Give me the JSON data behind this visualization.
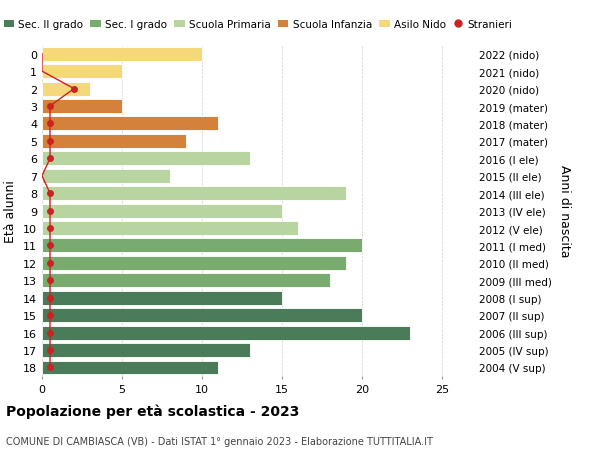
{
  "ages": [
    0,
    1,
    2,
    3,
    4,
    5,
    6,
    7,
    8,
    9,
    10,
    11,
    12,
    13,
    14,
    15,
    16,
    17,
    18
  ],
  "values": [
    10,
    5,
    3,
    5,
    11,
    9,
    13,
    8,
    19,
    15,
    16,
    20,
    19,
    18,
    15,
    20,
    23,
    13,
    11
  ],
  "stranieri_x": [
    0,
    0,
    2,
    0.5,
    0.5,
    0.5,
    0.5,
    0,
    0.5,
    0.5,
    0.5,
    0.5,
    0.5,
    0.5,
    0.5,
    0.5,
    0.5,
    0.5,
    0.5
  ],
  "stranieri_show": [
    0,
    0,
    1,
    1,
    1,
    1,
    1,
    0,
    1,
    1,
    1,
    1,
    1,
    1,
    1,
    1,
    1,
    1,
    1
  ],
  "bar_colors": [
    "#f5d87a",
    "#f5d87a",
    "#f5d87a",
    "#d4813a",
    "#d4813a",
    "#d4813a",
    "#b8d4a0",
    "#b8d4a0",
    "#b8d4a0",
    "#b8d4a0",
    "#b8d4a0",
    "#7aab6e",
    "#7aab6e",
    "#7aab6e",
    "#4a7c59",
    "#4a7c59",
    "#4a7c59",
    "#4a7c59",
    "#4a7c59"
  ],
  "right_labels": [
    "2022 (nido)",
    "2021 (nido)",
    "2020 (nido)",
    "2019 (mater)",
    "2018 (mater)",
    "2017 (mater)",
    "2016 (I ele)",
    "2015 (II ele)",
    "2014 (III ele)",
    "2013 (IV ele)",
    "2012 (V ele)",
    "2011 (I med)",
    "2010 (II med)",
    "2009 (III med)",
    "2008 (I sup)",
    "2007 (II sup)",
    "2006 (III sup)",
    "2005 (IV sup)",
    "2004 (V sup)"
  ],
  "legend_labels": [
    "Sec. II grado",
    "Sec. I grado",
    "Scuola Primaria",
    "Scuola Infanzia",
    "Asilo Nido",
    "Stranieri"
  ],
  "legend_colors": [
    "#4a7c59",
    "#7aab6e",
    "#b8d4a0",
    "#d4813a",
    "#f5d87a",
    "#cc2222"
  ],
  "ylabel_left": "Età alunni",
  "ylabel_right": "Anni di nascita",
  "title": "Popolazione per età scolastica - 2023",
  "subtitle": "COMUNE DI CAMBIASCA (VB) - Dati ISTAT 1° gennaio 2023 - Elaborazione TUTTITALIA.IT",
  "xlim": [
    0,
    27
  ],
  "xticks": [
    0,
    5,
    10,
    15,
    20,
    25
  ],
  "background_color": "#ffffff",
  "grid_color": "#cccccc",
  "stranieri_color": "#cc2222"
}
